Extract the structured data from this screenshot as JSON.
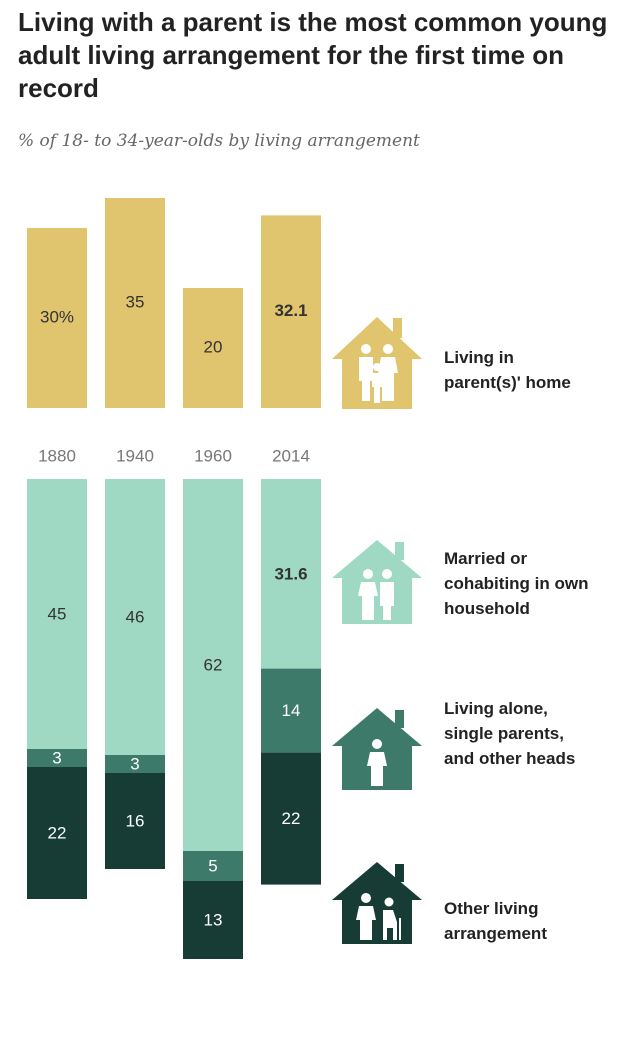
{
  "title": "Living with a parent is the most common young adult living arrangement for the first time on record",
  "subtitle": "% of 18- to 34-year-olds by living arrangement",
  "legend": {
    "parent": "Living in parent(s)' home",
    "married": "Married or cohabiting in own household",
    "alone": "Living alone, single parents, and other heads",
    "other": "Other living arrangement"
  },
  "colors": {
    "parent": "#e0c56e",
    "married": "#9fd9c3",
    "alone": "#3d7a69",
    "other": "#163c35"
  },
  "icons": {
    "parent": "house-family-icon",
    "married": "house-couple-icon",
    "alone": "house-single-person-icon",
    "other": "house-elderly-person-icon"
  },
  "chart_data": {
    "type": "bar",
    "categories": [
      "1880",
      "1940",
      "1960",
      "2014"
    ],
    "series": [
      {
        "key": "parent",
        "values": [
          30,
          35,
          20,
          32.1
        ],
        "labels": [
          "30%",
          "35",
          "20",
          "32.1"
        ]
      },
      {
        "key": "married",
        "values": [
          45,
          46,
          62,
          31.6
        ],
        "labels": [
          "45",
          "46",
          "62",
          "31.6"
        ]
      },
      {
        "key": "alone",
        "values": [
          3,
          3,
          5,
          14
        ],
        "labels": [
          "3",
          "3",
          "5",
          "14"
        ]
      },
      {
        "key": "other",
        "values": [
          22,
          16,
          13,
          22
        ],
        "labels": [
          "22",
          "16",
          "13",
          "22"
        ]
      }
    ],
    "highlight_category": "2014"
  }
}
